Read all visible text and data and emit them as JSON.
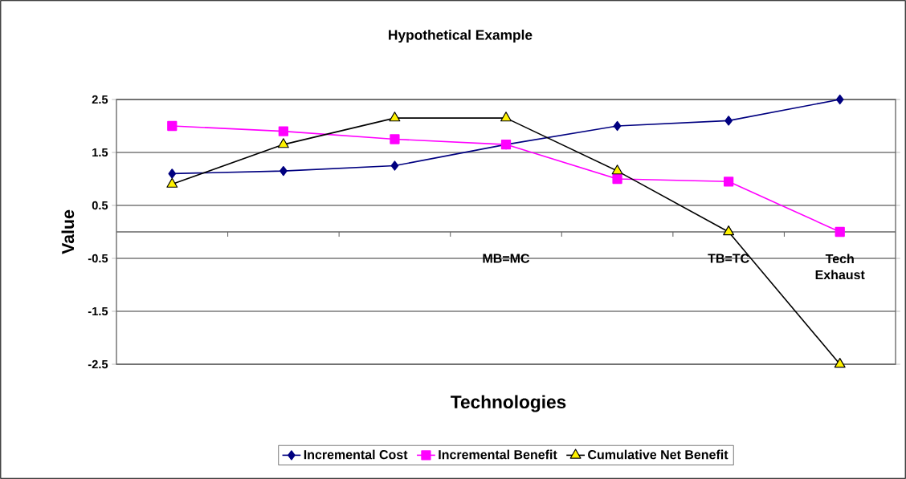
{
  "chart_data": {
    "type": "line",
    "title": "Hypothetical Example",
    "xlabel": "Technologies",
    "ylabel": "Value",
    "categories": [
      null,
      null,
      null,
      "MB=MC",
      null,
      "TB=TC",
      "Tech Exhaust"
    ],
    "series": [
      {
        "name": "Incremental Cost",
        "color": "#000080",
        "marker": "diamond",
        "values": [
          1.1,
          1.15,
          1.25,
          1.65,
          2.0,
          2.1,
          2.5
        ]
      },
      {
        "name": "Incremental Benefit",
        "color": "#ff00ff",
        "marker": "square",
        "values": [
          2.0,
          1.9,
          1.75,
          1.65,
          1.0,
          0.95,
          0.0
        ]
      },
      {
        "name": "Cumulative Net Benefit",
        "color": "#000000",
        "marker": "triangle",
        "values": [
          0.9,
          1.65,
          2.15,
          2.15,
          1.15,
          0.0,
          -2.5
        ]
      }
    ],
    "ylim": [
      -2.5,
      2.5
    ],
    "yticks": [
      2.5,
      1.5,
      0.5,
      -0.5,
      -1.5,
      -2.5
    ],
    "grid": "y",
    "legend": "bottom"
  }
}
